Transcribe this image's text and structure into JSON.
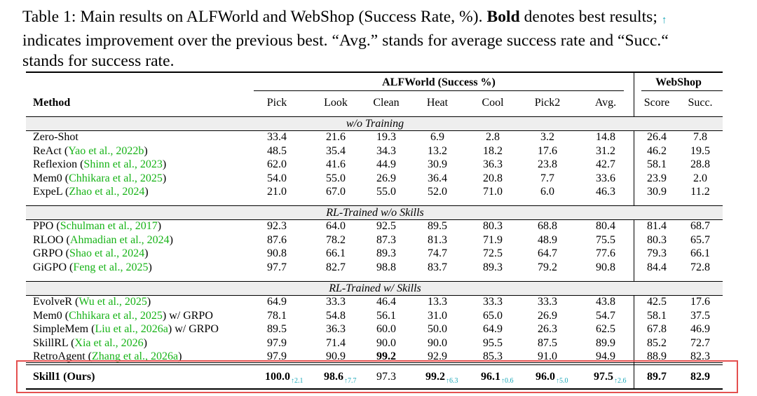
{
  "caption": {
    "lead": "Table 1: Main results on ALFWorld and WebShop (Success Rate, %). ",
    "bold_word": "Bold",
    "tail1": " denotes best results; ",
    "arrow": "↑",
    "line2": "indicates improvement over the previous best. “Avg.” stands for average success rate and “Succ.“",
    "line3": "stands for success rate."
  },
  "groups": {
    "alfworld": "ALFWorld (Success %)",
    "webshop": "WebShop"
  },
  "columns": [
    "Method",
    "Pick",
    "Look",
    "Clean",
    "Heat",
    "Cool",
    "Pick2",
    "Avg.",
    "Score",
    "Succ."
  ],
  "sections": [
    {
      "title": "w/o Training",
      "rows": [
        {
          "name": "Zero-Shot",
          "cite": "",
          "suffix": "",
          "values": [
            "33.4",
            "21.6",
            "19.3",
            "6.9",
            "2.8",
            "3.2",
            "14.8",
            "26.4",
            "7.8"
          ]
        },
        {
          "name": "ReAct (",
          "cite": "Yao et al., 2022b",
          "suffix": ")",
          "values": [
            "48.5",
            "35.4",
            "34.3",
            "13.2",
            "18.2",
            "17.6",
            "31.2",
            "46.2",
            "19.5"
          ]
        },
        {
          "name": "Reflexion (",
          "cite": "Shinn et al., 2023",
          "suffix": ")",
          "values": [
            "62.0",
            "41.6",
            "44.9",
            "30.9",
            "36.3",
            "23.8",
            "42.7",
            "58.1",
            "28.8"
          ]
        },
        {
          "name": "Mem0 (",
          "cite": "Chhikara et al., 2025",
          "suffix": ")",
          "values": [
            "54.0",
            "55.0",
            "26.9",
            "36.4",
            "20.8",
            "7.7",
            "33.6",
            "23.9",
            "2.0"
          ]
        },
        {
          "name": "ExpeL (",
          "cite": "Zhao et al., 2024",
          "suffix": ")",
          "values": [
            "21.0",
            "67.0",
            "55.0",
            "52.0",
            "71.0",
            "6.0",
            "46.3",
            "30.9",
            "11.2"
          ]
        }
      ]
    },
    {
      "title": "RL-Trained w/o Skills",
      "rows": [
        {
          "name": "PPO (",
          "cite": "Schulman et al., 2017",
          "suffix": ")",
          "values": [
            "92.3",
            "64.0",
            "92.5",
            "89.5",
            "80.3",
            "68.8",
            "80.4",
            "81.4",
            "68.7"
          ]
        },
        {
          "name": "RLOO (",
          "cite": "Ahmadian et al., 2024",
          "suffix": ")",
          "values": [
            "87.6",
            "78.2",
            "87.3",
            "81.3",
            "71.9",
            "48.9",
            "75.5",
            "80.3",
            "65.7"
          ]
        },
        {
          "name": "GRPO (",
          "cite": "Shao et al., 2024",
          "suffix": ")",
          "values": [
            "90.8",
            "66.1",
            "89.3",
            "74.7",
            "72.5",
            "64.7",
            "77.6",
            "79.3",
            "66.1"
          ]
        },
        {
          "name": "GiGPO (",
          "cite": "Feng et al., 2025",
          "suffix": ")",
          "values": [
            "97.7",
            "82.7",
            "98.8",
            "83.7",
            "89.3",
            "79.2",
            "90.8",
            "84.4",
            "72.8"
          ]
        }
      ]
    },
    {
      "title": "RL-Trained w/ Skills",
      "rows": [
        {
          "name": "EvolveR (",
          "cite": "Wu et al., 2025",
          "suffix": ")",
          "values": [
            "64.9",
            "33.3",
            "46.4",
            "13.3",
            "33.3",
            "33.3",
            "43.8",
            "42.5",
            "17.6"
          ]
        },
        {
          "name": "Mem0 (",
          "cite": "Chhikara et al., 2025",
          "suffix": ") w/ GRPO",
          "values": [
            "78.1",
            "54.8",
            "56.1",
            "31.0",
            "65.0",
            "26.9",
            "54.7",
            "58.1",
            "37.5"
          ]
        },
        {
          "name": "SimpleMem (",
          "cite": "Liu et al., 2026a",
          "suffix": ") w/ GRPO",
          "values": [
            "89.5",
            "36.3",
            "60.0",
            "50.0",
            "64.9",
            "26.3",
            "62.5",
            "67.8",
            "46.9"
          ]
        },
        {
          "name": "SkillRL (",
          "cite": "Xia et al., 2026",
          "suffix": ")",
          "values": [
            "97.9",
            "71.4",
            "90.0",
            "90.0",
            "95.5",
            "87.5",
            "89.9",
            "85.2",
            "72.7"
          ]
        },
        {
          "name": "RetroAgent (",
          "cite": "Zhang et al., 2026a",
          "suffix": ")",
          "values": [
            "97.9",
            "90.9",
            "99.2",
            "92.9",
            "85.3",
            "91.0",
            "94.9",
            "88.9",
            "82.3"
          ],
          "bold": [
            2
          ]
        }
      ]
    }
  ],
  "ours": {
    "name": "Skill1 (Ours)",
    "values": [
      "100.0",
      "98.6",
      "97.3",
      "99.2",
      "96.1",
      "96.0",
      "97.5",
      "89.7",
      "82.9"
    ],
    "improvements": [
      "↑2.1",
      "↑7.7",
      "",
      "↑6.3",
      "↑0.6",
      "↑5.0",
      "↑2.6",
      "",
      ""
    ],
    "bold": [
      0,
      1,
      3,
      4,
      5,
      6,
      7,
      8
    ]
  },
  "colors": {
    "citation": "#17b317",
    "improvement": "#1aa7b8",
    "highlight_box": "#e4504f",
    "section_shade": "#eeeeee"
  }
}
